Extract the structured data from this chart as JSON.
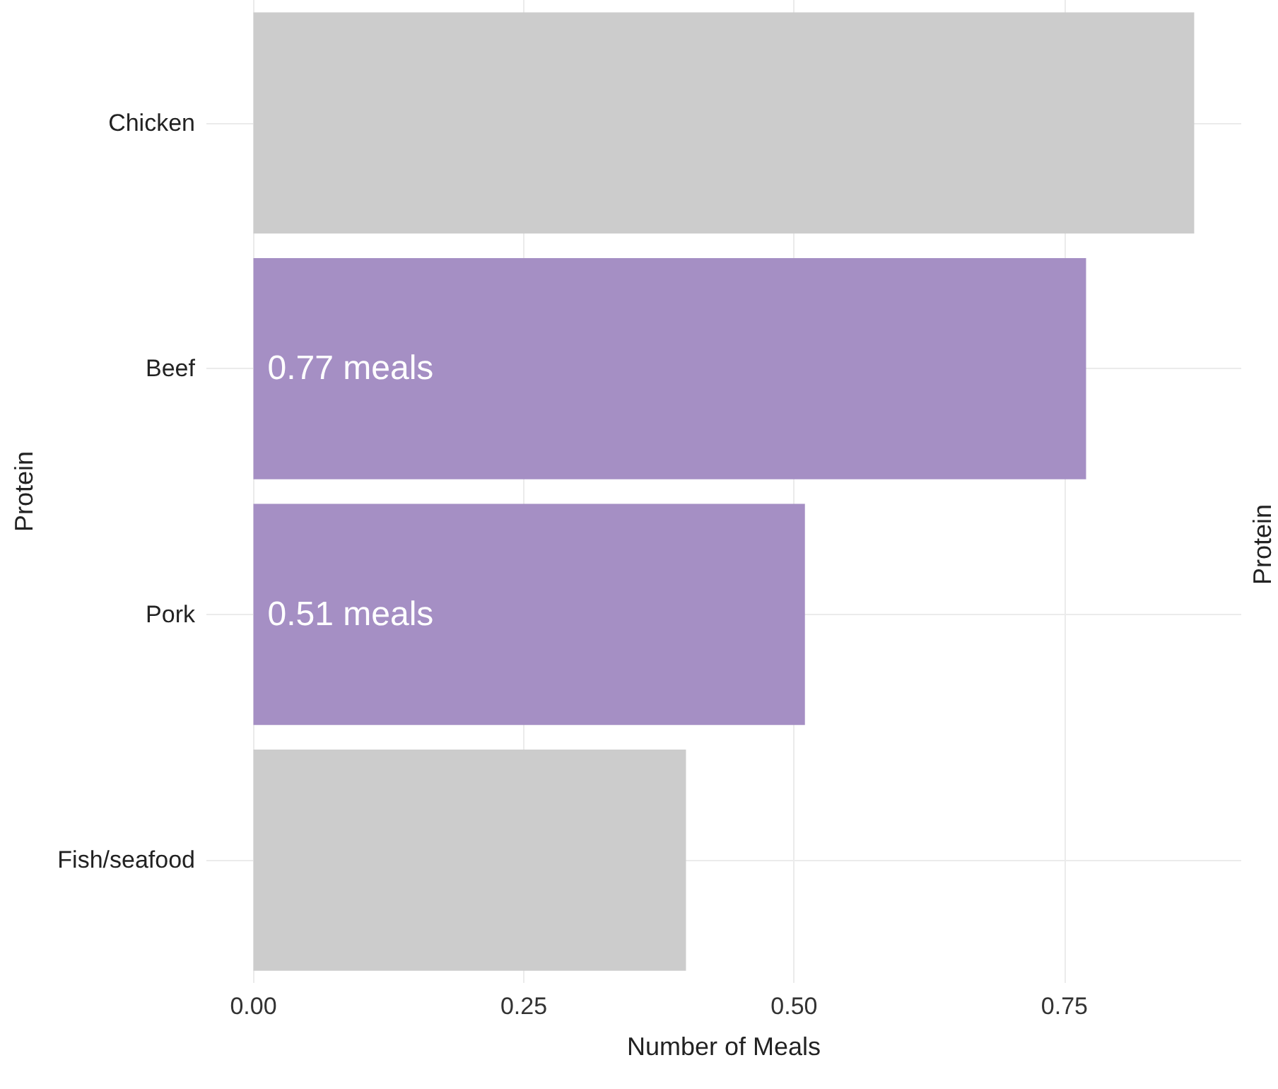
{
  "chart_data": {
    "type": "bar",
    "orientation": "horizontal",
    "xlabel": "Number of Meals",
    "ylabel": "Protein",
    "y2label": "Protein",
    "categories": [
      "Chicken",
      "Beef",
      "Pork",
      "Fish/seafood"
    ],
    "values": [
      0.87,
      0.77,
      0.51,
      0.4
    ],
    "colors": [
      "#cccccc",
      "#a58fc4",
      "#a58fc4",
      "#cccccc"
    ],
    "value_labels": [
      null,
      "0.77 meals",
      "0.51 meals",
      null
    ],
    "xlim": [
      -0.0435,
      0.9135
    ],
    "xticks": [
      {
        "value": 0,
        "label": "0.00"
      },
      {
        "value": 0.25,
        "label": "0.25"
      },
      {
        "value": 0.5,
        "label": "0.50"
      },
      {
        "value": 0.75,
        "label": "0.75"
      }
    ],
    "grid": true
  }
}
